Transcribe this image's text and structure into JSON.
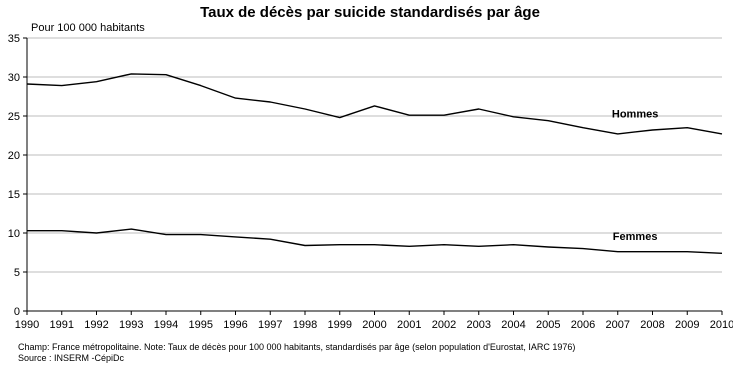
{
  "chart_data": {
    "type": "line",
    "title": "Taux de décès par suicide standardisés par âge",
    "unit_label": "Pour 100  000 habitants",
    "xlabel": "",
    "ylabel": "",
    "ylim": [
      0,
      35
    ],
    "yticks": [
      0,
      5,
      10,
      15,
      20,
      25,
      30,
      35
    ],
    "x": [
      "1990",
      "1991",
      "1992",
      "1993",
      "1994",
      "1995",
      "1996",
      "1997",
      "1998",
      "1999",
      "2000",
      "2001",
      "2002",
      "2003",
      "2004",
      "2005",
      "2006",
      "2007",
      "2008",
      "2009",
      "2010"
    ],
    "grid": true,
    "series": [
      {
        "name": "Hommes",
        "values": [
          29.1,
          28.9,
          29.4,
          30.4,
          30.3,
          28.9,
          27.3,
          26.8,
          25.9,
          24.8,
          26.3,
          25.1,
          25.1,
          25.9,
          24.9,
          24.4,
          23.5,
          22.7,
          23.2,
          23.5,
          22.7
        ],
        "color": "#000000"
      },
      {
        "name": "Femmes",
        "values": [
          10.3,
          10.3,
          10.0,
          10.5,
          9.8,
          9.8,
          9.5,
          9.2,
          8.4,
          8.5,
          8.5,
          8.3,
          8.5,
          8.3,
          8.5,
          8.2,
          8.0,
          7.6,
          7.6,
          7.6,
          7.4
        ],
        "color": "#000000"
      }
    ]
  },
  "notes": {
    "champ": "Champ: France métropolitaine. Note: Taux de décès pour 100 000 habitants, standardisés par âge (selon population d'Eurostat, IARC 1976)",
    "source": "Source : INSERM -CépiDc"
  }
}
